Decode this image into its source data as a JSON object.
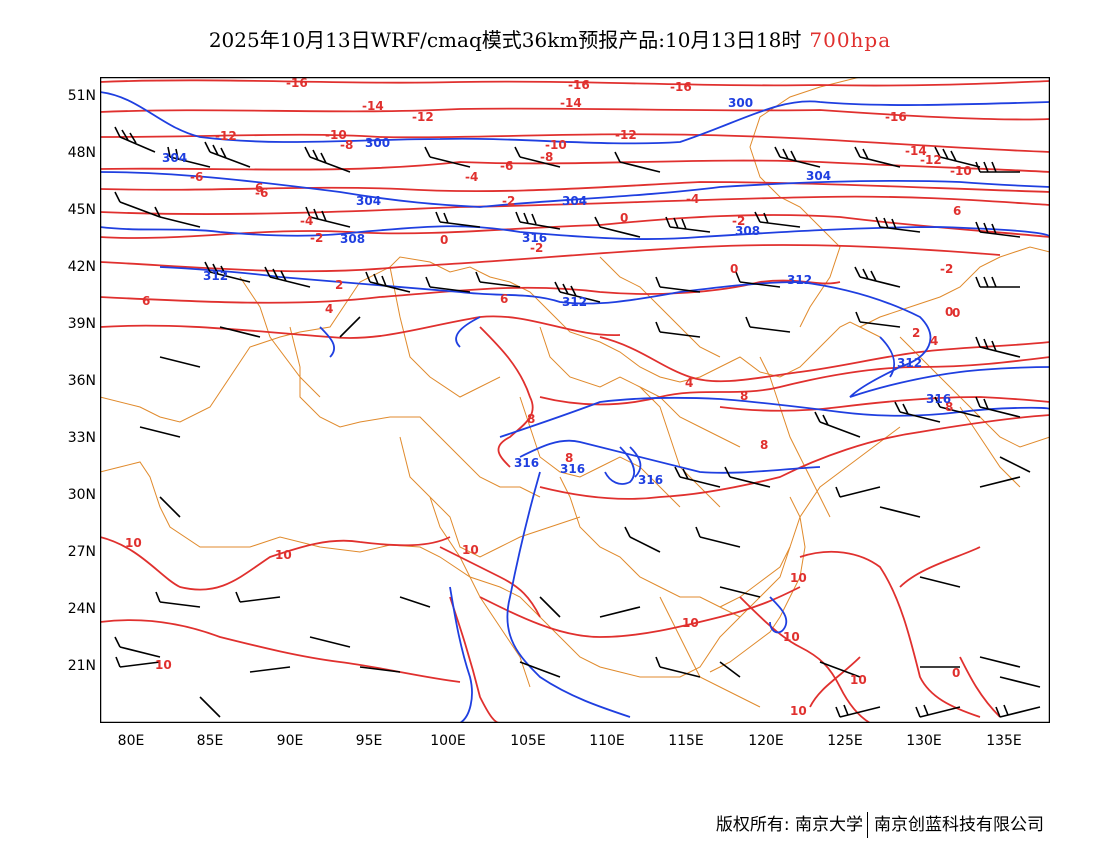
{
  "title": {
    "main": "2025年10月13日WRF/cmaq模式36km预报产品:10月13日18时",
    "level": "700hpa"
  },
  "axes": {
    "lat_labels": [
      "51N",
      "48N",
      "45N",
      "42N",
      "39N",
      "36N",
      "33N",
      "30N",
      "27N",
      "24N",
      "21N"
    ],
    "lon_labels": [
      "80E",
      "85E",
      "90E",
      "95E",
      "100E",
      "105E",
      "110E",
      "115E",
      "120E",
      "125E",
      "130E",
      "135E"
    ]
  },
  "copyright": {
    "owner_label": "版权所有:",
    "university": "南京大学",
    "company": "南京创蓝科技有限公司"
  },
  "colors": {
    "temperature": "#e0302e",
    "height": "#1f3fe0",
    "border": "#e08a2c",
    "wind": "#000000"
  },
  "height_labels": [
    "300",
    "300",
    "304",
    "304",
    "304",
    "304",
    "308",
    "308",
    "312",
    "312",
    "312",
    "316",
    "316",
    "316",
    "316",
    "316",
    "312"
  ],
  "temp_labels": [
    "-16",
    "-16",
    "-16",
    "-16",
    "-14",
    "-14",
    "-14",
    "-12",
    "-12",
    "-12",
    "-12",
    "-10",
    "-10",
    "-10",
    "-8",
    "-8",
    "-6",
    "-6",
    "-6",
    "-4",
    "-4",
    "-4",
    "-2",
    "-2",
    "-2",
    "-2",
    "-2",
    "0",
    "0",
    "0",
    "0",
    "2",
    "2",
    "4",
    "4",
    "4",
    "6",
    "6",
    "6",
    "6",
    "8",
    "8",
    "8",
    "8",
    "8",
    "10",
    "10",
    "10",
    "10",
    "10",
    "10",
    "10",
    "10",
    "10",
    "0",
    "0"
  ]
}
